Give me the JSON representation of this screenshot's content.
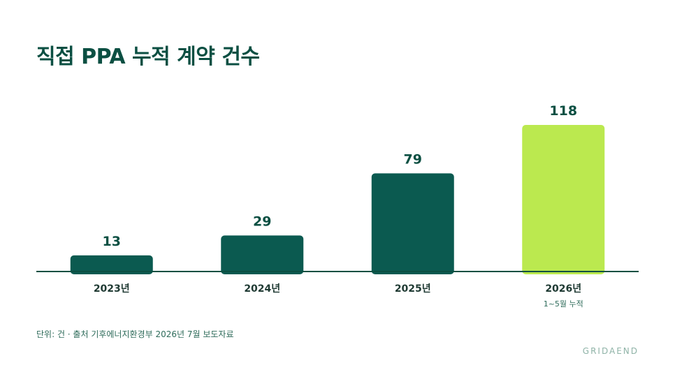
{
  "chart_data": {
    "type": "bar",
    "title": "직접 PPA 누적 계약 건수",
    "categories": [
      "2023년",
      "2024년",
      "2025년",
      "2026년"
    ],
    "category_notes": [
      "",
      "",
      "",
      "1~5월 누적"
    ],
    "values": [
      13,
      29,
      79,
      118
    ],
    "data_labels": [
      "13",
      "29",
      "79",
      "118"
    ],
    "ylim": [
      0,
      130
    ],
    "grid": false,
    "xlabel": "",
    "ylabel": "",
    "colors": {
      "bar": "#0b5a50",
      "highlight": "#bbe94f",
      "axis": "#0b4f42",
      "label": "#0b4f42"
    },
    "highlight_index": 3
  },
  "footer": {
    "source": "단위: 건 · 출처 기후에너지환경부 2026년 7월 보도자료",
    "brand": "GRIDAEND"
  }
}
